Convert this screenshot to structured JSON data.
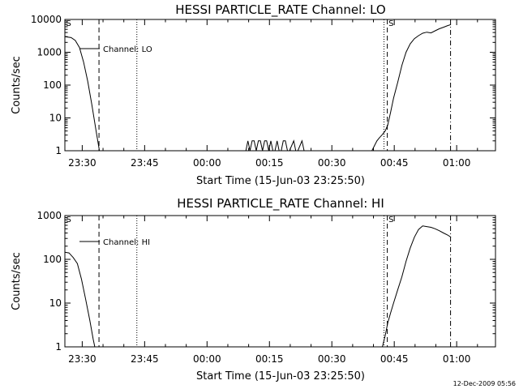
{
  "footer_stamp": "12-Dec-2009 05:56",
  "chart_data": [
    {
      "type": "line",
      "title": "HESSI PARTICLE_RATE Channel: LO",
      "xlabel": "Start Time (15-Jun-03 23:25:50)",
      "ylabel": "Counts/sec",
      "y_scale": "log",
      "ylim": [
        1,
        10000
      ],
      "y_ticks": [
        1,
        10,
        100,
        1000,
        10000
      ],
      "y_tick_labels": [
        "1",
        "10",
        "100",
        "1000",
        "10000"
      ],
      "x_unit": "minutes since 23:25:50",
      "xlim": [
        0,
        103.5
      ],
      "x_ticks": [
        4.17,
        19.17,
        34.17,
        49.17,
        64.17,
        79.17,
        94.17
      ],
      "x_tick_labels": [
        "23:30",
        "23:45",
        "00:00",
        "00:15",
        "00:30",
        "00:45",
        "01:00"
      ],
      "legend": {
        "placement": "top-left",
        "entries": [
          "Channel: LO"
        ]
      },
      "vlines": [
        {
          "x": 8.2,
          "style": "dashed"
        },
        {
          "x": 17.3,
          "style": "dotted"
        },
        {
          "x": 76.7,
          "style": "dotted"
        },
        {
          "x": 77.5,
          "style": "dashed"
        },
        {
          "x": 92.7,
          "style": "dashdot"
        }
      ],
      "flags": [
        {
          "x": 0.3,
          "text": "S"
        },
        {
          "x": 77.8,
          "text": "S"
        }
      ],
      "series": [
        {
          "segments": [
            [
              [
                0,
                3000
              ],
              [
                1.5,
                2800
              ],
              [
                2.5,
                2300
              ],
              [
                3.5,
                1400
              ],
              [
                4.5,
                500
              ],
              [
                5.5,
                130
              ],
              [
                6.5,
                25
              ],
              [
                7.5,
                4
              ],
              [
                8.3,
                1
              ]
            ],
            [
              [
                43.5,
                1
              ],
              [
                44,
                2
              ],
              [
                44.5,
                1
              ],
              [
                45,
                2
              ],
              [
                45.5,
                2
              ],
              [
                46,
                1
              ],
              [
                46.5,
                2
              ],
              [
                47,
                2
              ],
              [
                47.5,
                1
              ],
              [
                48,
                2
              ],
              [
                48.5,
                2
              ],
              [
                49,
                1
              ],
              [
                49.5,
                2
              ],
              [
                50,
                1
              ],
              [
                50.5,
                1
              ],
              [
                51,
                2
              ],
              [
                51.5,
                1
              ],
              [
                52,
                1
              ],
              [
                52.5,
                2
              ],
              [
                53,
                2
              ],
              [
                53.5,
                1
              ],
              [
                54,
                1
              ],
              [
                55,
                2
              ],
              [
                55.5,
                1
              ],
              [
                56,
                1
              ],
              [
                57,
                2
              ],
              [
                57.5,
                1
              ]
            ],
            [
              [
                73.8,
                1
              ],
              [
                74.5,
                1.5
              ],
              [
                75,
                2
              ],
              [
                75.6,
                2.5
              ],
              [
                76.2,
                3
              ],
              [
                77,
                4
              ],
              [
                77.6,
                6
              ],
              [
                78.3,
                15
              ],
              [
                79,
                40
              ],
              [
                80,
                120
              ],
              [
                81,
                400
              ],
              [
                82,
                1000
              ],
              [
                83,
                1800
              ],
              [
                84,
                2600
              ],
              [
                85,
                3200
              ],
              [
                86,
                3800
              ],
              [
                87,
                4100
              ],
              [
                88,
                3900
              ],
              [
                89,
                4500
              ],
              [
                90,
                5200
              ],
              [
                91,
                5800
              ],
              [
                92,
                6500
              ],
              [
                92.8,
                7000
              ]
            ]
          ]
        }
      ]
    },
    {
      "type": "line",
      "title": "HESSI PARTICLE_RATE Channel: HI",
      "xlabel": "Start Time (15-Jun-03 23:25:50)",
      "ylabel": "Counts/sec",
      "y_scale": "log",
      "ylim": [
        1,
        1000
      ],
      "y_ticks": [
        1,
        10,
        100,
        1000
      ],
      "y_tick_labels": [
        "1",
        "10",
        "100",
        "1000"
      ],
      "x_unit": "minutes since 23:25:50",
      "xlim": [
        0,
        103.5
      ],
      "x_ticks": [
        4.17,
        19.17,
        34.17,
        49.17,
        64.17,
        79.17,
        94.17
      ],
      "x_tick_labels": [
        "23:30",
        "23:45",
        "00:00",
        "00:15",
        "00:30",
        "00:45",
        "01:00"
      ],
      "legend": {
        "placement": "top-left",
        "entries": [
          "Channel: HI"
        ]
      },
      "vlines": [
        {
          "x": 8.2,
          "style": "dashed"
        },
        {
          "x": 17.3,
          "style": "dotted"
        },
        {
          "x": 76.7,
          "style": "dotted"
        },
        {
          "x": 77.5,
          "style": "dashed"
        },
        {
          "x": 92.7,
          "style": "dashdot"
        }
      ],
      "flags": [
        {
          "x": 0.3,
          "text": "S"
        },
        {
          "x": 77.8,
          "text": "S"
        }
      ],
      "series": [
        {
          "segments": [
            [
              [
                0,
                145
              ],
              [
                1,
                140
              ],
              [
                2,
                110
              ],
              [
                3,
                80
              ],
              [
                4,
                35
              ],
              [
                5,
                12
              ],
              [
                6,
                4
              ],
              [
                6.8,
                1.5
              ],
              [
                7.2,
                1
              ]
            ],
            [
              [
                76.3,
                1
              ],
              [
                77,
                1.8
              ],
              [
                77.6,
                3.5
              ],
              [
                78.3,
                6
              ],
              [
                79,
                10
              ],
              [
                80,
                20
              ],
              [
                81,
                40
              ],
              [
                82,
                90
              ],
              [
                83,
                180
              ],
              [
                84,
                320
              ],
              [
                85,
                480
              ],
              [
                86,
                580
              ],
              [
                87,
                560
              ],
              [
                88,
                540
              ],
              [
                89,
                500
              ],
              [
                90,
                450
              ],
              [
                91,
                400
              ],
              [
                92,
                360
              ],
              [
                92.8,
                320
              ]
            ]
          ]
        }
      ]
    }
  ]
}
